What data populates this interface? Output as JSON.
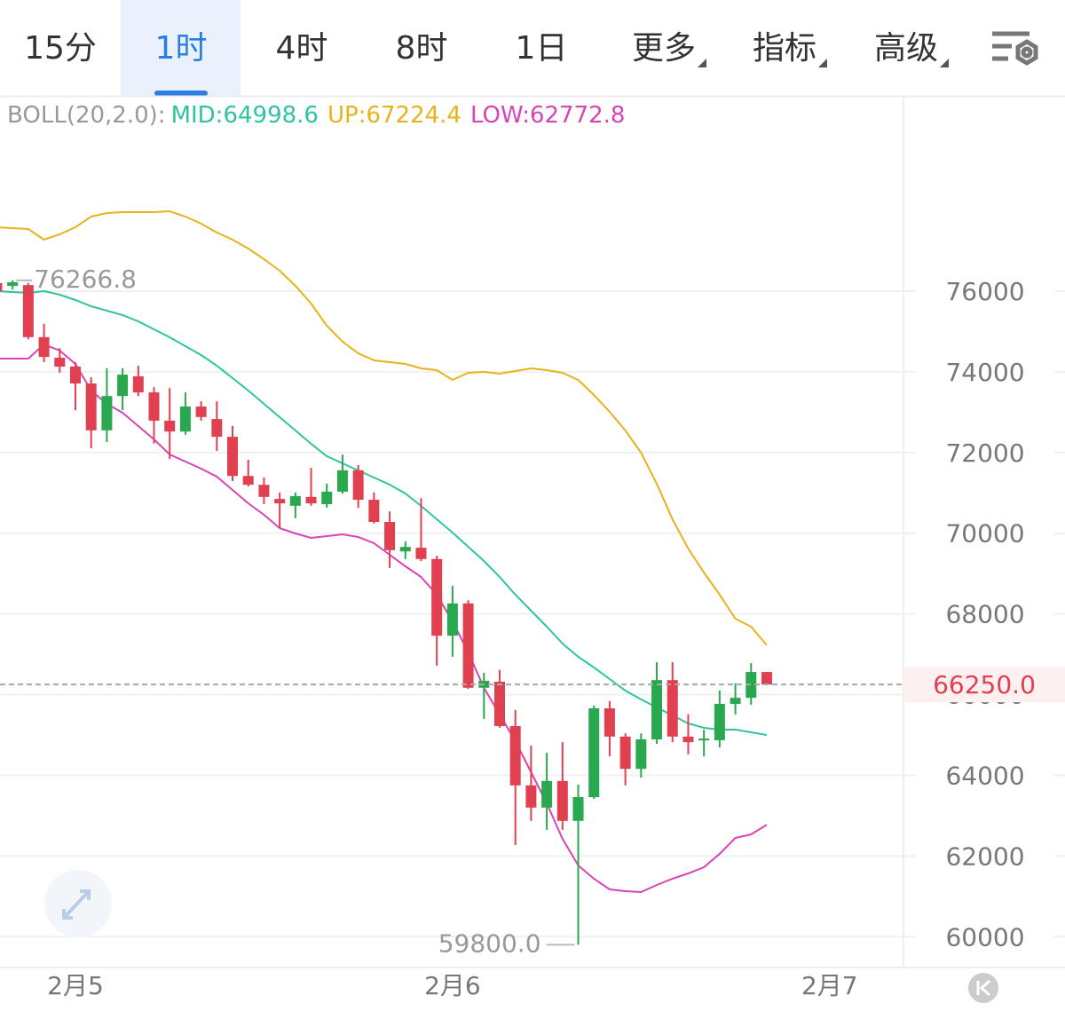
{
  "tabs": {
    "items": [
      "15分",
      "1时",
      "4时",
      "8时",
      "1日",
      "更多",
      "指标",
      "高级"
    ],
    "selected": 1
  },
  "chart_data": {
    "type": "candlestick",
    "indicator": "BOLL(20,2.0):",
    "x": [
      -5,
      -4,
      -3,
      -2,
      -1,
      0,
      1,
      2,
      3,
      4,
      5,
      6,
      7,
      8,
      9,
      10,
      11,
      12,
      13,
      14,
      15,
      16,
      17,
      18,
      19,
      20,
      21,
      22,
      23,
      24,
      25,
      26,
      27,
      28,
      29,
      30,
      31,
      32,
      33,
      34,
      35,
      36,
      37,
      38,
      39,
      40,
      41,
      42,
      43,
      44
    ],
    "open": [
      76200,
      76130,
      76150,
      74860,
      74350,
      74130,
      73710,
      72550,
      73400,
      73890,
      73490,
      72790,
      72520,
      73140,
      72830,
      72390,
      71420,
      71200,
      70850,
      70680,
      70900,
      70720,
      71030,
      71560,
      70830,
      70280,
      69550,
      69640,
      69360,
      67460,
      68260,
      66170,
      66320,
      65220,
      63750,
      63200,
      63860,
      62870,
      63460,
      65660,
      64960,
      64160,
      64890,
      66360,
      64960,
      64870,
      64870,
      65770,
      65920,
      66560
    ],
    "high": [
      76230,
      76266.8,
      76200,
      75190,
      74590,
      74240,
      73870,
      74090,
      74090,
      74150,
      73620,
      73600,
      73490,
      73270,
      73270,
      72660,
      71820,
      71380,
      71010,
      71010,
      71620,
      71230,
      71950,
      71690,
      71010,
      70540,
      69800,
      70870,
      69440,
      68700,
      68340,
      66540,
      66610,
      65620,
      64740,
      64560,
      64820,
      63770,
      65730,
      65840,
      65040,
      65040,
      66800,
      66800,
      65510,
      65130,
      66100,
      66280,
      66780,
      66560
    ],
    "low": [
      75960,
      76040,
      74810,
      74240,
      73980,
      73050,
      72110,
      72260,
      73050,
      73400,
      72220,
      71840,
      72440,
      72790,
      72040,
      71290,
      71160,
      70720,
      70130,
      70370,
      70680,
      70630,
      70980,
      70630,
      70240,
      69140,
      69360,
      69310,
      66720,
      66940,
      66140,
      65400,
      65180,
      62270,
      62870,
      62650,
      62650,
      59800,
      63420,
      64470,
      63750,
      63940,
      64780,
      64820,
      64520,
      64470,
      64690,
      65510,
      65750,
      66250
    ],
    "close": [
      76000,
      76220,
      74860,
      74370,
      74130,
      73710,
      72550,
      73400,
      73930,
      73490,
      72790,
      72520,
      73140,
      72880,
      72390,
      71420,
      71200,
      70900,
      70740,
      70920,
      70740,
      71030,
      71560,
      70830,
      70280,
      69580,
      69660,
      69360,
      67460,
      68260,
      66170,
      66340,
      65220,
      63750,
      63200,
      63860,
      62870,
      63460,
      65660,
      64960,
      64160,
      64890,
      66360,
      64960,
      64820,
      64910,
      65770,
      65920,
      66560,
      66250
    ],
    "up_color": "#2aa84f",
    "down_color": "#e0404f",
    "series": [
      {
        "name": "MID:",
        "color": "#2ec4a0",
        "values": [
          76000,
          75978,
          75956,
          76000,
          75912,
          75780,
          75626,
          75516,
          75406,
          75252,
          75054,
          74856,
          74636,
          74416,
          74152,
          73844,
          73536,
          73206,
          72876,
          72546,
          72216,
          71908,
          71732,
          71556,
          71380,
          71204,
          70984,
          70676,
          70346,
          70016,
          69664,
          69312,
          68916,
          68476,
          68080,
          67684,
          67266,
          66936,
          66672,
          66386,
          66100,
          65880,
          65682,
          65484,
          65286,
          65176,
          65132,
          65132,
          65066,
          64998.6
        ]
      },
      {
        "name": "UP:",
        "color": "#e8b21a",
        "values": [
          77584,
          77562,
          77540,
          77276,
          77408,
          77584,
          77848,
          77936,
          77958,
          77958,
          77958,
          77980,
          77848,
          77672,
          77452,
          77276,
          77056,
          76792,
          76506,
          76132,
          75692,
          75142,
          74746,
          74460,
          74284,
          74240,
          74196,
          74086,
          74042,
          73800,
          73976,
          73998,
          73954,
          74020,
          74086,
          74042,
          73976,
          73800,
          73426,
          73008,
          72546,
          71996,
          71226,
          70346,
          69620,
          69026,
          68476,
          67882,
          67684,
          67224.4
        ]
      },
      {
        "name": "LOW:",
        "color": "#d844b4",
        "values": [
          74328,
          74328,
          74328,
          74680,
          74526,
          74196,
          73536,
          73206,
          72986,
          72656,
          72326,
          71952,
          71776,
          71600,
          71402,
          71072,
          70742,
          70456,
          70126,
          69994,
          69884,
          69928,
          69972,
          69906,
          69752,
          69466,
          69180,
          68916,
          68476,
          67816,
          67046,
          66166,
          65506,
          64846,
          64076,
          63306,
          62426,
          61766,
          61436,
          61172,
          61128,
          61106,
          61282,
          61436,
          61568,
          61722,
          62052,
          62448,
          62536,
          62772.8
        ]
      }
    ],
    "max_label": 76266.8,
    "min_label": {
      "value": 59800,
      "label": "59800.0"
    },
    "last_price": {
      "value": 66250,
      "label": "66250.0"
    },
    "xlim": [
      -4.8,
      52.7
    ],
    "xticks": [
      {
        "value": 0,
        "label": "2月5"
      },
      {
        "value": 24,
        "label": "2月6"
      },
      {
        "value": 48,
        "label": "2月7"
      }
    ],
    "ylim": [
      59236,
      80840
    ],
    "yticks": [
      60000,
      62000,
      64000,
      66000,
      68000,
      70000,
      72000,
      74000,
      76000
    ],
    "grid": true
  }
}
